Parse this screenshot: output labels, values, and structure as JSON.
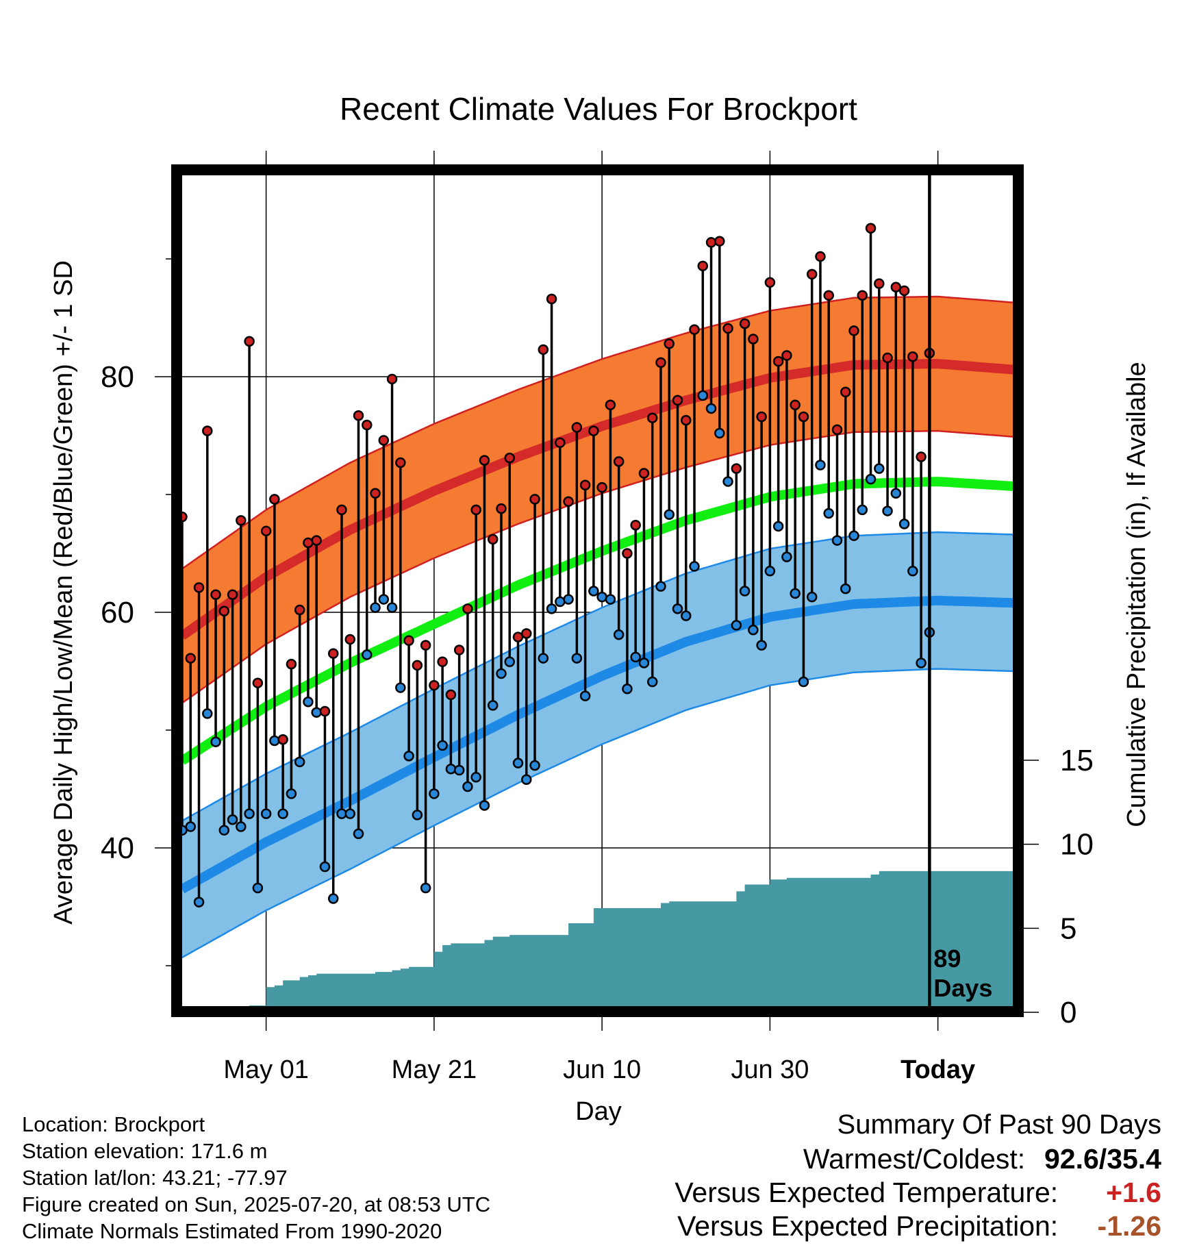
{
  "chart_data": {
    "type": "line",
    "title": "Recent Climate Values For Brockport",
    "xlabel": "Day",
    "ylabel_left": "Average Daily High/Low/Mean (Red/Blue/Green) +/- 1 SD",
    "ylabel_right": "Cumulative Precipitation (in), If Available",
    "x_range_days": [
      0,
      99
    ],
    "today_day": 89,
    "today_label": "89",
    "today_label_2": "Days",
    "ylim_temp": [
      25,
      97
    ],
    "yticks_temp": [
      40,
      60,
      80
    ],
    "ylim_precip": [
      0,
      15
    ],
    "yticks_precip": [
      0,
      5,
      10,
      15
    ],
    "xticks": [
      {
        "day": 10,
        "label": "May 01"
      },
      {
        "day": 30,
        "label": "May 21"
      },
      {
        "day": 50,
        "label": "Jun 10"
      },
      {
        "day": 70,
        "label": "Jun 30"
      },
      {
        "day": 90,
        "label": "Today"
      }
    ],
    "grid": true,
    "colors": {
      "high_band": "#f47b31",
      "high_band_edge": "#d02020",
      "high_mean": "#d42a2a",
      "low_band": "#82c0e8",
      "low_band_edge": "#1e8ae6",
      "low_mean": "#1e8ae6",
      "mean": "#11ee11",
      "precip": "#4699a3",
      "high_dot": "#cc2222",
      "low_dot": "#2a86d6"
    },
    "normal_high": [
      [
        0,
        58.0
      ],
      [
        10,
        63.0
      ],
      [
        20,
        67.0
      ],
      [
        30,
        70.3
      ],
      [
        40,
        73.2
      ],
      [
        50,
        75.8
      ],
      [
        60,
        78.0
      ],
      [
        70,
        79.9
      ],
      [
        80,
        81.0
      ],
      [
        90,
        81.1
      ],
      [
        99,
        80.6
      ]
    ],
    "normal_high_sd": 5.7,
    "normal_low": [
      [
        0,
        36.5
      ],
      [
        10,
        40.5
      ],
      [
        20,
        44.0
      ],
      [
        30,
        47.7
      ],
      [
        40,
        51.3
      ],
      [
        50,
        54.6
      ],
      [
        60,
        57.5
      ],
      [
        70,
        59.6
      ],
      [
        80,
        60.7
      ],
      [
        90,
        61.0
      ],
      [
        99,
        60.8
      ]
    ],
    "normal_low_sd": 5.8,
    "normal_mean": [
      [
        0,
        47.4
      ],
      [
        10,
        52.0
      ],
      [
        20,
        55.7
      ],
      [
        30,
        59.0
      ],
      [
        40,
        62.3
      ],
      [
        50,
        65.2
      ],
      [
        60,
        67.8
      ],
      [
        70,
        69.8
      ],
      [
        80,
        70.9
      ],
      [
        90,
        71.1
      ],
      [
        99,
        70.7
      ]
    ],
    "highs": [
      68.1,
      56.1,
      62.1,
      75.4,
      61.5,
      60.1,
      61.5,
      67.8,
      83.0,
      54.0,
      66.9,
      69.6,
      49.2,
      55.6,
      60.2,
      65.9,
      66.1,
      51.6,
      56.5,
      68.7,
      57.7,
      76.7,
      75.9,
      70.1,
      74.6,
      79.8,
      72.7,
      57.6,
      55.5,
      57.2,
      53.8,
      55.8,
      53.0,
      56.8,
      60.3,
      68.7,
      72.9,
      66.2,
      68.8,
      73.1,
      57.9,
      58.2,
      69.6,
      82.3,
      86.6,
      74.4,
      69.4,
      75.7,
      70.8,
      75.4,
      70.6,
      77.6,
      72.8,
      65.0,
      67.4,
      71.8,
      76.5,
      81.2,
      82.8,
      78.0,
      76.3,
      84.0,
      89.4,
      91.4,
      91.5,
      84.1,
      72.2,
      84.5,
      83.2,
      76.6,
      88.0,
      81.3,
      81.8,
      77.6,
      76.6,
      88.7,
      90.2,
      86.9,
      75.5,
      78.7,
      83.9,
      86.9,
      92.6,
      87.9,
      81.6,
      87.6,
      87.3,
      81.7,
      73.2,
      82.0
    ],
    "lows": [
      41.5,
      41.8,
      35.4,
      51.4,
      49.0,
      41.5,
      42.4,
      41.8,
      42.9,
      36.6,
      42.9,
      49.1,
      42.9,
      44.6,
      47.3,
      52.4,
      51.5,
      38.4,
      35.7,
      42.9,
      42.9,
      41.2,
      56.4,
      60.4,
      61.1,
      60.4,
      53.6,
      47.8,
      42.8,
      36.6,
      44.6,
      48.7,
      46.7,
      46.6,
      45.2,
      46.0,
      43.6,
      52.1,
      54.8,
      55.8,
      47.2,
      45.8,
      47.0,
      56.1,
      60.3,
      60.9,
      61.1,
      56.1,
      52.9,
      61.8,
      61.3,
      61.1,
      58.1,
      53.5,
      56.2,
      55.7,
      54.1,
      62.2,
      68.3,
      60.3,
      59.7,
      63.9,
      78.4,
      77.3,
      75.2,
      71.1,
      58.9,
      61.8,
      58.5,
      57.2,
      63.5,
      67.3,
      64.7,
      61.6,
      54.1,
      61.3,
      72.5,
      68.4,
      66.1,
      62.0,
      66.5,
      68.7,
      71.3,
      72.2,
      68.6,
      70.1,
      67.5,
      63.5,
      55.7,
      58.3
    ],
    "precip": [
      0.0,
      0.0,
      0.0,
      0.0,
      0.0,
      0.3,
      0.3,
      0.3,
      0.4,
      0.4,
      1.5,
      1.6,
      1.9,
      1.9,
      2.1,
      2.2,
      2.3,
      2.3,
      2.3,
      2.3,
      2.3,
      2.3,
      2.3,
      2.4,
      2.4,
      2.5,
      2.6,
      2.7,
      2.7,
      2.7,
      3.6,
      4.0,
      4.1,
      4.1,
      4.1,
      4.1,
      4.3,
      4.5,
      4.5,
      4.6,
      4.6,
      4.6,
      4.6,
      4.6,
      4.6,
      4.6,
      5.3,
      5.3,
      5.3,
      6.2,
      6.2,
      6.2,
      6.2,
      6.2,
      6.2,
      6.2,
      6.2,
      6.5,
      6.6,
      6.6,
      6.6,
      6.6,
      6.6,
      6.6,
      6.6,
      6.6,
      7.2,
      7.6,
      7.6,
      7.6,
      7.9,
      7.9,
      8.0,
      8.0,
      8.0,
      8.0,
      8.0,
      8.0,
      8.0,
      8.0,
      8.0,
      8.0,
      8.2,
      8.4,
      8.4,
      8.4,
      8.4,
      8.4,
      8.4,
      8.4,
      8.4,
      8.4,
      8.4,
      8.4,
      8.4,
      8.4,
      8.4,
      8.4,
      8.4,
      8.4
    ]
  },
  "location": {
    "line1": "Location: Brockport",
    "line2": "Station elevation: 171.6 m",
    "line3": "Station lat/lon: 43.21; -77.97",
    "line4": "Figure created on Sun, 2025-07-20, at 08:53 UTC",
    "line5": "Climate Normals Estimated From 1990-2020"
  },
  "summary": {
    "header": "Summary Of Past 90 Days",
    "row1_label": "Warmest/Coldest:",
    "row1_value": "92.6/35.4",
    "row1_color": "#000000",
    "row2_label": "Versus Expected Temperature:",
    "row2_value": "+1.6",
    "row2_color": "#cc2222",
    "row3_label": "Versus Expected Precipitation:",
    "row3_value": "-1.26",
    "row3_color": "#a8522a"
  }
}
